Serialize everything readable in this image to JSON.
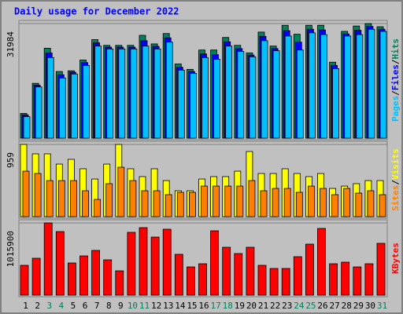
{
  "title": "Daily usage for December 2022",
  "legend_separator": "/",
  "chart_data": [
    {
      "type": "bar",
      "ylim": [
        0,
        31984
      ],
      "yticks": [
        31984
      ],
      "series": [
        {
          "name": "Hits",
          "color": "#00805c",
          "values": [
            6900,
            15300,
            25100,
            18600,
            18800,
            21800,
            27500,
            25900,
            25900,
            25900,
            28700,
            26300,
            29200,
            20700,
            19200,
            24600,
            24600,
            28100,
            25900,
            23800,
            29600,
            25700,
            31500,
            29000,
            31500,
            31500,
            21200,
            29800,
            31300,
            31984,
            31100
          ]
        },
        {
          "name": "Files",
          "color": "#0000ff",
          "values": [
            6500,
            14800,
            23800,
            17700,
            18400,
            21100,
            26600,
            25400,
            25400,
            25400,
            27200,
            25600,
            28000,
            19800,
            18600,
            23500,
            23300,
            26900,
            25000,
            23200,
            28400,
            25000,
            30000,
            26800,
            30400,
            30200,
            20300,
            29100,
            30100,
            31200,
            30400
          ]
        },
        {
          "name": "Pages",
          "color": "#00c0ff",
          "values": [
            6000,
            14300,
            22500,
            16800,
            17900,
            20300,
            25700,
            24900,
            24900,
            24900,
            25700,
            24900,
            26800,
            19000,
            18100,
            22500,
            22000,
            25700,
            24200,
            22700,
            27200,
            24400,
            28500,
            24600,
            29400,
            28900,
            19400,
            28500,
            28900,
            30400,
            29800
          ]
        }
      ]
    },
    {
      "type": "bar",
      "ylim": [
        0,
        959
      ],
      "yticks": [
        959
      ],
      "series": [
        {
          "name": "Visits",
          "color": "#ffff00",
          "values": [
            959,
            834,
            834,
            698,
            761,
            636,
            500,
            698,
            959,
            636,
            532,
            636,
            479,
            344,
            344,
            500,
            532,
            532,
            604,
            865,
            573,
            573,
            636,
            573,
            532,
            573,
            375,
            406,
            438,
            479,
            479
          ]
        },
        {
          "name": "Sites",
          "color": "#ff8000",
          "values": [
            604,
            573,
            479,
            479,
            479,
            344,
            229,
            438,
            656,
            479,
            344,
            344,
            292,
            323,
            323,
            406,
            406,
            406,
            406,
            479,
            344,
            375,
            375,
            323,
            406,
            375,
            292,
            375,
            313,
            344,
            292
          ]
        }
      ]
    },
    {
      "type": "bar",
      "ylim": [
        0,
        1015900
      ],
      "yticks": [
        1015900
      ],
      "categories": [
        "1",
        "2",
        "3",
        "4",
        "5",
        "6",
        "7",
        "8",
        "9",
        "10",
        "11",
        "12",
        "13",
        "14",
        "15",
        "16",
        "17",
        "18",
        "19",
        "20",
        "21",
        "22",
        "23",
        "24",
        "25",
        "26",
        "27",
        "28",
        "29",
        "30",
        "31"
      ],
      "category_colors": [
        "#000000",
        "#000000",
        "#00805c",
        "#00805c",
        "#000000",
        "#000000",
        "#000000",
        "#000000",
        "#000000",
        "#00805c",
        "#00805c",
        "#000000",
        "#000000",
        "#000000",
        "#000000",
        "#000000",
        "#00805c",
        "#00805c",
        "#000000",
        "#000000",
        "#000000",
        "#000000",
        "#000000",
        "#00805c",
        "#00805c",
        "#000000",
        "#000000",
        "#000000",
        "#000000",
        "#000000",
        "#00805c"
      ],
      "series": [
        {
          "name": "KBytes",
          "color": "#ff0000",
          "values": [
            419600,
            519000,
            1015900,
            894400,
            452700,
            552100,
            629400,
            496900,
            342300,
            883400,
            949600,
            817100,
            927500,
            574200,
            397500,
            441700,
            905400,
            673600,
            585200,
            673600,
            419600,
            375400,
            375400,
            541100,
            717700,
            938600,
            441700,
            463800,
            397500,
            441700,
            728800
          ]
        }
      ]
    }
  ]
}
